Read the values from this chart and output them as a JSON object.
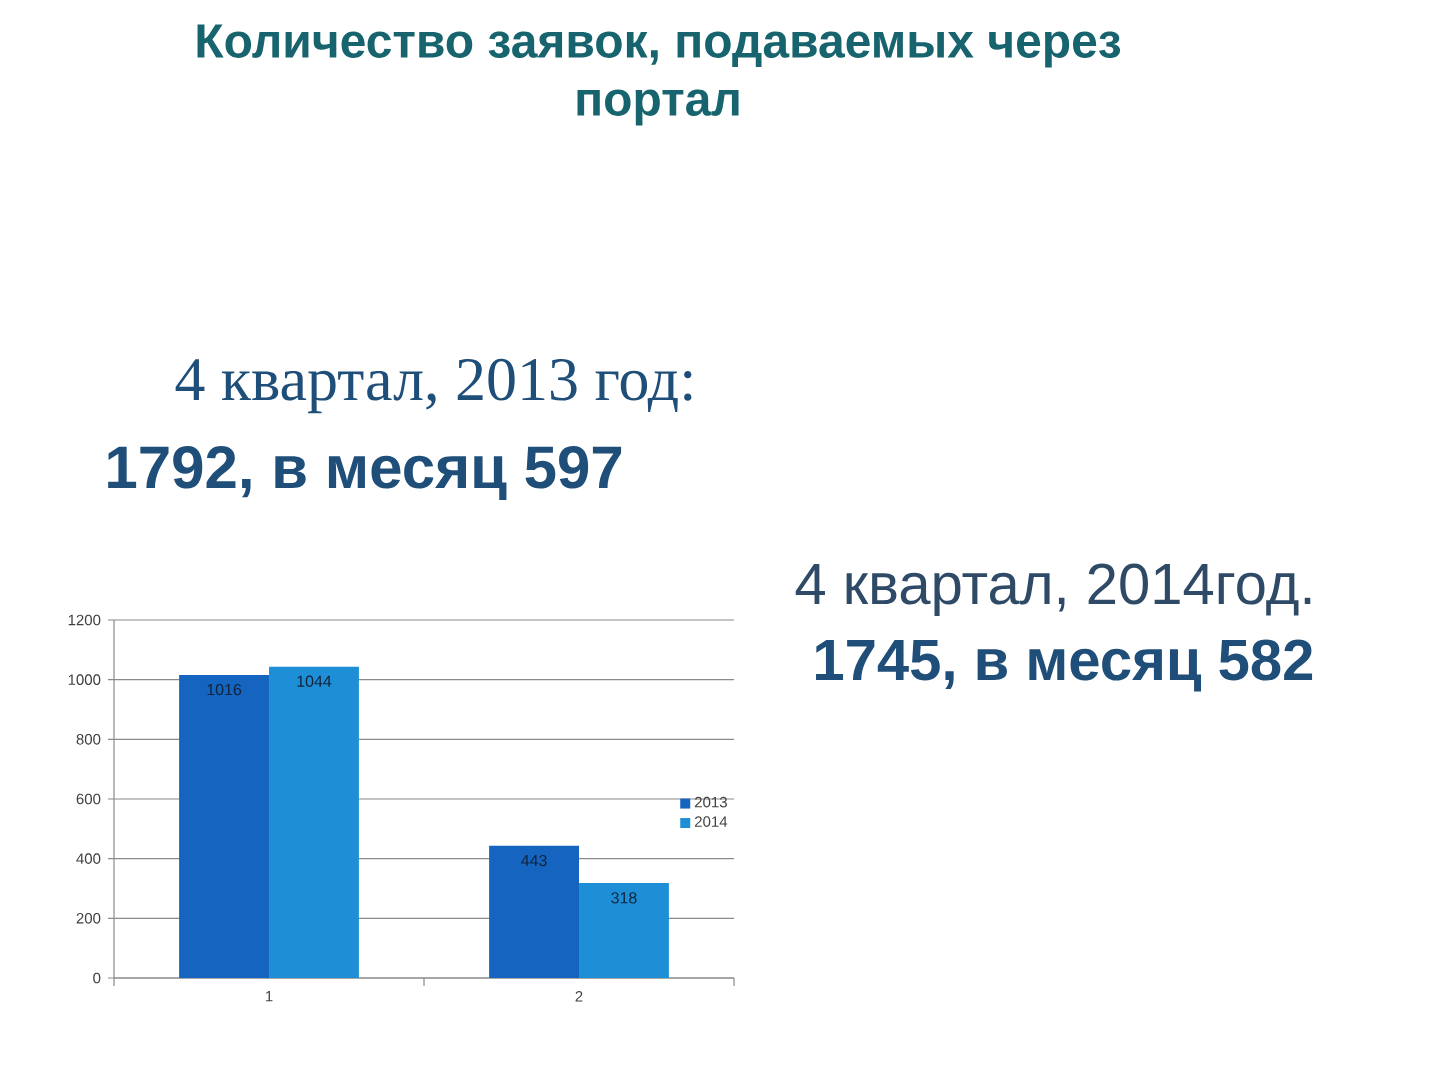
{
  "chart_data": {
    "type": "bar",
    "title": "Количество заявок, подаваемых через портал",
    "annotations": [
      "4 квартал, 2013 год:",
      "1792, в месяц 597",
      "4 квартал, 2014год.",
      "1745, в месяц 582"
    ],
    "categories": [
      "1",
      "2"
    ],
    "series": [
      {
        "name": "2013",
        "color": "#1565c0",
        "values": [
          1016,
          443
        ]
      },
      {
        "name": "2014",
        "color": "#1e8fd6",
        "values": [
          1044,
          318
        ]
      }
    ],
    "ylim": [
      0,
      1200
    ],
    "yticks": [
      0,
      200,
      400,
      600,
      800,
      1000,
      1200
    ],
    "grid": "y",
    "legend": "right",
    "data_labels": true
  }
}
